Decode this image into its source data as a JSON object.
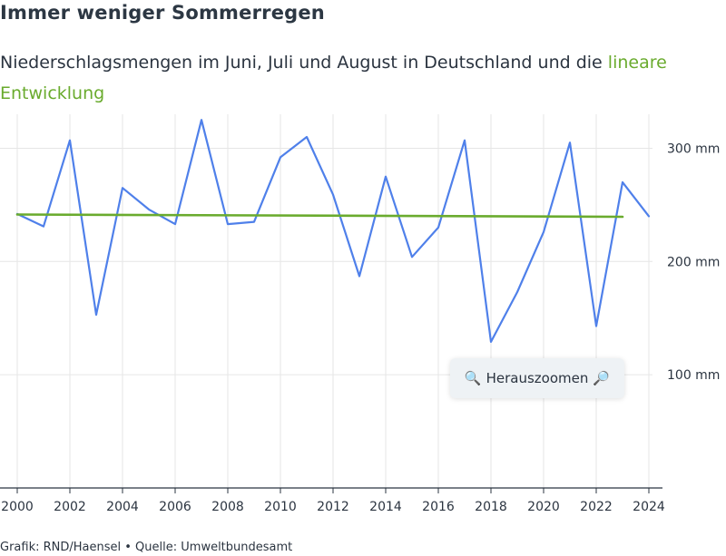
{
  "header": {
    "title": "Immer weniger Sommerregen",
    "subtitle_main": "Niederschlagsmengen im Juni, Juli und August in Deutschland und die",
    "subtitle_trend": "lineare Entwicklung"
  },
  "zoom_button": {
    "label": "Herauszoomen",
    "left_icon": "magnifier-left-icon",
    "right_icon": "magnifier-right-icon"
  },
  "credits": "Grafik: RND/Haensel • Quelle: Umweltbundesamt",
  "chart_data": {
    "type": "line",
    "x": [
      2000,
      2001,
      2002,
      2003,
      2004,
      2005,
      2006,
      2007,
      2008,
      2009,
      2010,
      2011,
      2012,
      2013,
      2014,
      2015,
      2016,
      2017,
      2018,
      2019,
      2020,
      2021,
      2022,
      2023,
      2024
    ],
    "series": [
      {
        "values": [
          242,
          231,
          307,
          153,
          265,
          246,
          233,
          325,
          233,
          235,
          292,
          310,
          259,
          187,
          275,
          204,
          230,
          307,
          129,
          173,
          226,
          305,
          143,
          270,
          240
        ],
        "color": "#4f80ea"
      },
      {
        "x": [
          2000,
          2023
        ],
        "values": [
          241.5,
          239.5
        ],
        "color": "#6aab2e"
      }
    ],
    "xticks": [
      2000,
      2002,
      2004,
      2006,
      2008,
      2010,
      2012,
      2014,
      2016,
      2018,
      2020,
      2022,
      2024
    ],
    "xtick_labels": [
      "2000",
      "2002",
      "2004",
      "2006",
      "2008",
      "2010",
      "2012",
      "2014",
      "2016",
      "2018",
      "2020",
      "2022",
      "2024"
    ],
    "yticks": [
      100,
      200,
      300
    ],
    "ytick_labels": [
      "100 mm",
      "200 mm",
      "300 mm"
    ],
    "xlim": [
      2000,
      2024
    ],
    "ylim": [
      0,
      330
    ],
    "y_axis_position": "right",
    "grid": true,
    "legend": false
  }
}
